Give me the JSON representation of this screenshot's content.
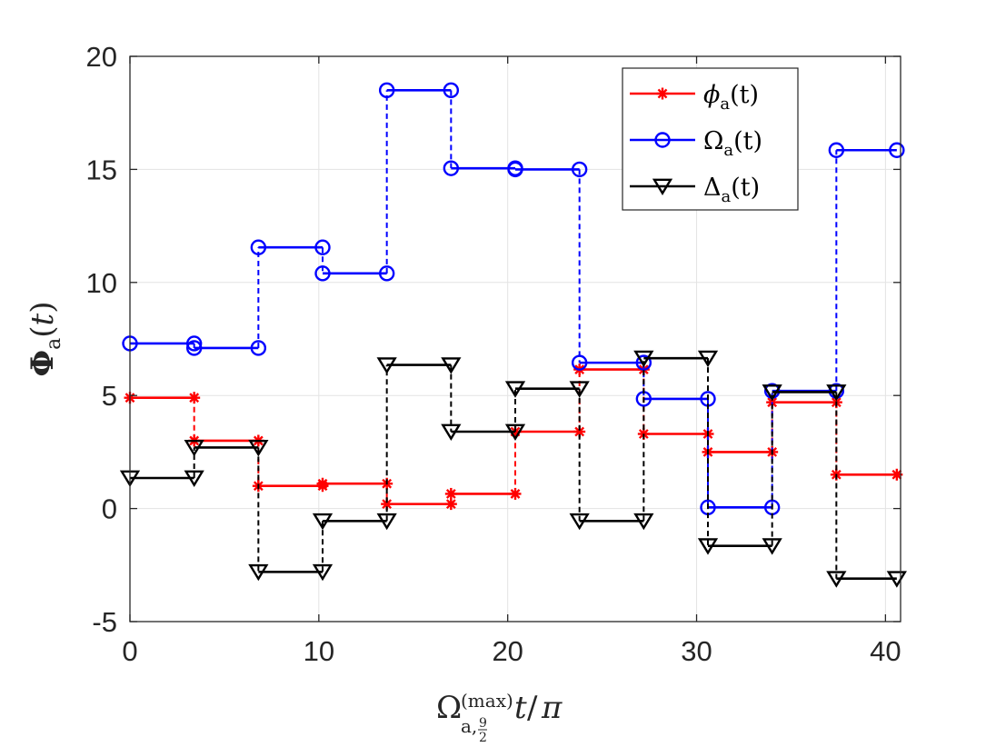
{
  "chart_data": {
    "type": "line",
    "style": "step",
    "title": "",
    "xlabel": "Ω_{a,9/2}^(max) t/π",
    "ylabel": "Φ_a(t)",
    "xlim": [
      0,
      40.8
    ],
    "ylim": [
      -5,
      20
    ],
    "x_ticks": [
      0,
      10,
      20,
      30,
      40
    ],
    "y_ticks": [
      -5,
      0,
      5,
      10,
      15,
      20
    ],
    "x_tick_labels": [
      "0",
      "10",
      "20",
      "30",
      "40"
    ],
    "y_tick_labels": [
      "-5",
      "0",
      "5",
      "10",
      "15",
      "20"
    ],
    "grid": true,
    "legend_position": "top-right",
    "series": [
      {
        "name": "phi_a",
        "label_main": "ϕ",
        "label_sub": "a",
        "label_arg": "(t)",
        "color": "#ff0000",
        "marker": "asterisk",
        "segments": [
          [
            0.0,
            3.4,
            4.9
          ],
          [
            3.4,
            6.8,
            3.0
          ],
          [
            6.8,
            10.2,
            1.0
          ],
          [
            10.2,
            13.6,
            1.1
          ],
          [
            13.6,
            17.0,
            0.2
          ],
          [
            17.0,
            20.4,
            0.65
          ],
          [
            20.4,
            23.8,
            3.4
          ],
          [
            23.8,
            27.2,
            6.15
          ],
          [
            27.2,
            30.6,
            3.3
          ],
          [
            30.6,
            34.0,
            2.5
          ],
          [
            34.0,
            37.4,
            4.7
          ],
          [
            37.4,
            40.6,
            1.5
          ]
        ]
      },
      {
        "name": "Omega_a",
        "label_main": "Ω",
        "label_sub": "a",
        "label_arg": "(t)",
        "color": "#0000ff",
        "marker": "circle",
        "segments": [
          [
            0.0,
            3.4,
            7.3
          ],
          [
            3.4,
            6.8,
            7.1
          ],
          [
            6.8,
            10.2,
            11.55
          ],
          [
            10.2,
            13.6,
            10.4
          ],
          [
            13.6,
            17.0,
            18.5
          ],
          [
            17.0,
            20.4,
            15.05
          ],
          [
            20.4,
            23.8,
            15.0
          ],
          [
            23.8,
            27.2,
            6.45
          ],
          [
            27.2,
            30.6,
            4.85
          ],
          [
            30.6,
            34.0,
            0.05
          ],
          [
            34.0,
            37.4,
            5.2
          ],
          [
            37.4,
            40.6,
            15.85
          ]
        ]
      },
      {
        "name": "Delta_a",
        "label_main": "Δ",
        "label_sub": "a",
        "label_arg": "(t)",
        "color": "#000000",
        "marker": "triangle-down",
        "segments": [
          [
            0.0,
            3.4,
            1.35
          ],
          [
            3.4,
            6.8,
            2.7
          ],
          [
            6.8,
            10.2,
            -2.8
          ],
          [
            10.2,
            13.6,
            -0.55
          ],
          [
            13.6,
            17.0,
            6.35
          ],
          [
            17.0,
            20.4,
            3.4
          ],
          [
            20.4,
            23.8,
            5.3
          ],
          [
            23.8,
            27.2,
            -0.55
          ],
          [
            27.2,
            30.6,
            6.65
          ],
          [
            30.6,
            34.0,
            -1.65
          ],
          [
            34.0,
            37.4,
            5.15
          ],
          [
            37.4,
            40.6,
            -3.1
          ]
        ]
      }
    ]
  }
}
